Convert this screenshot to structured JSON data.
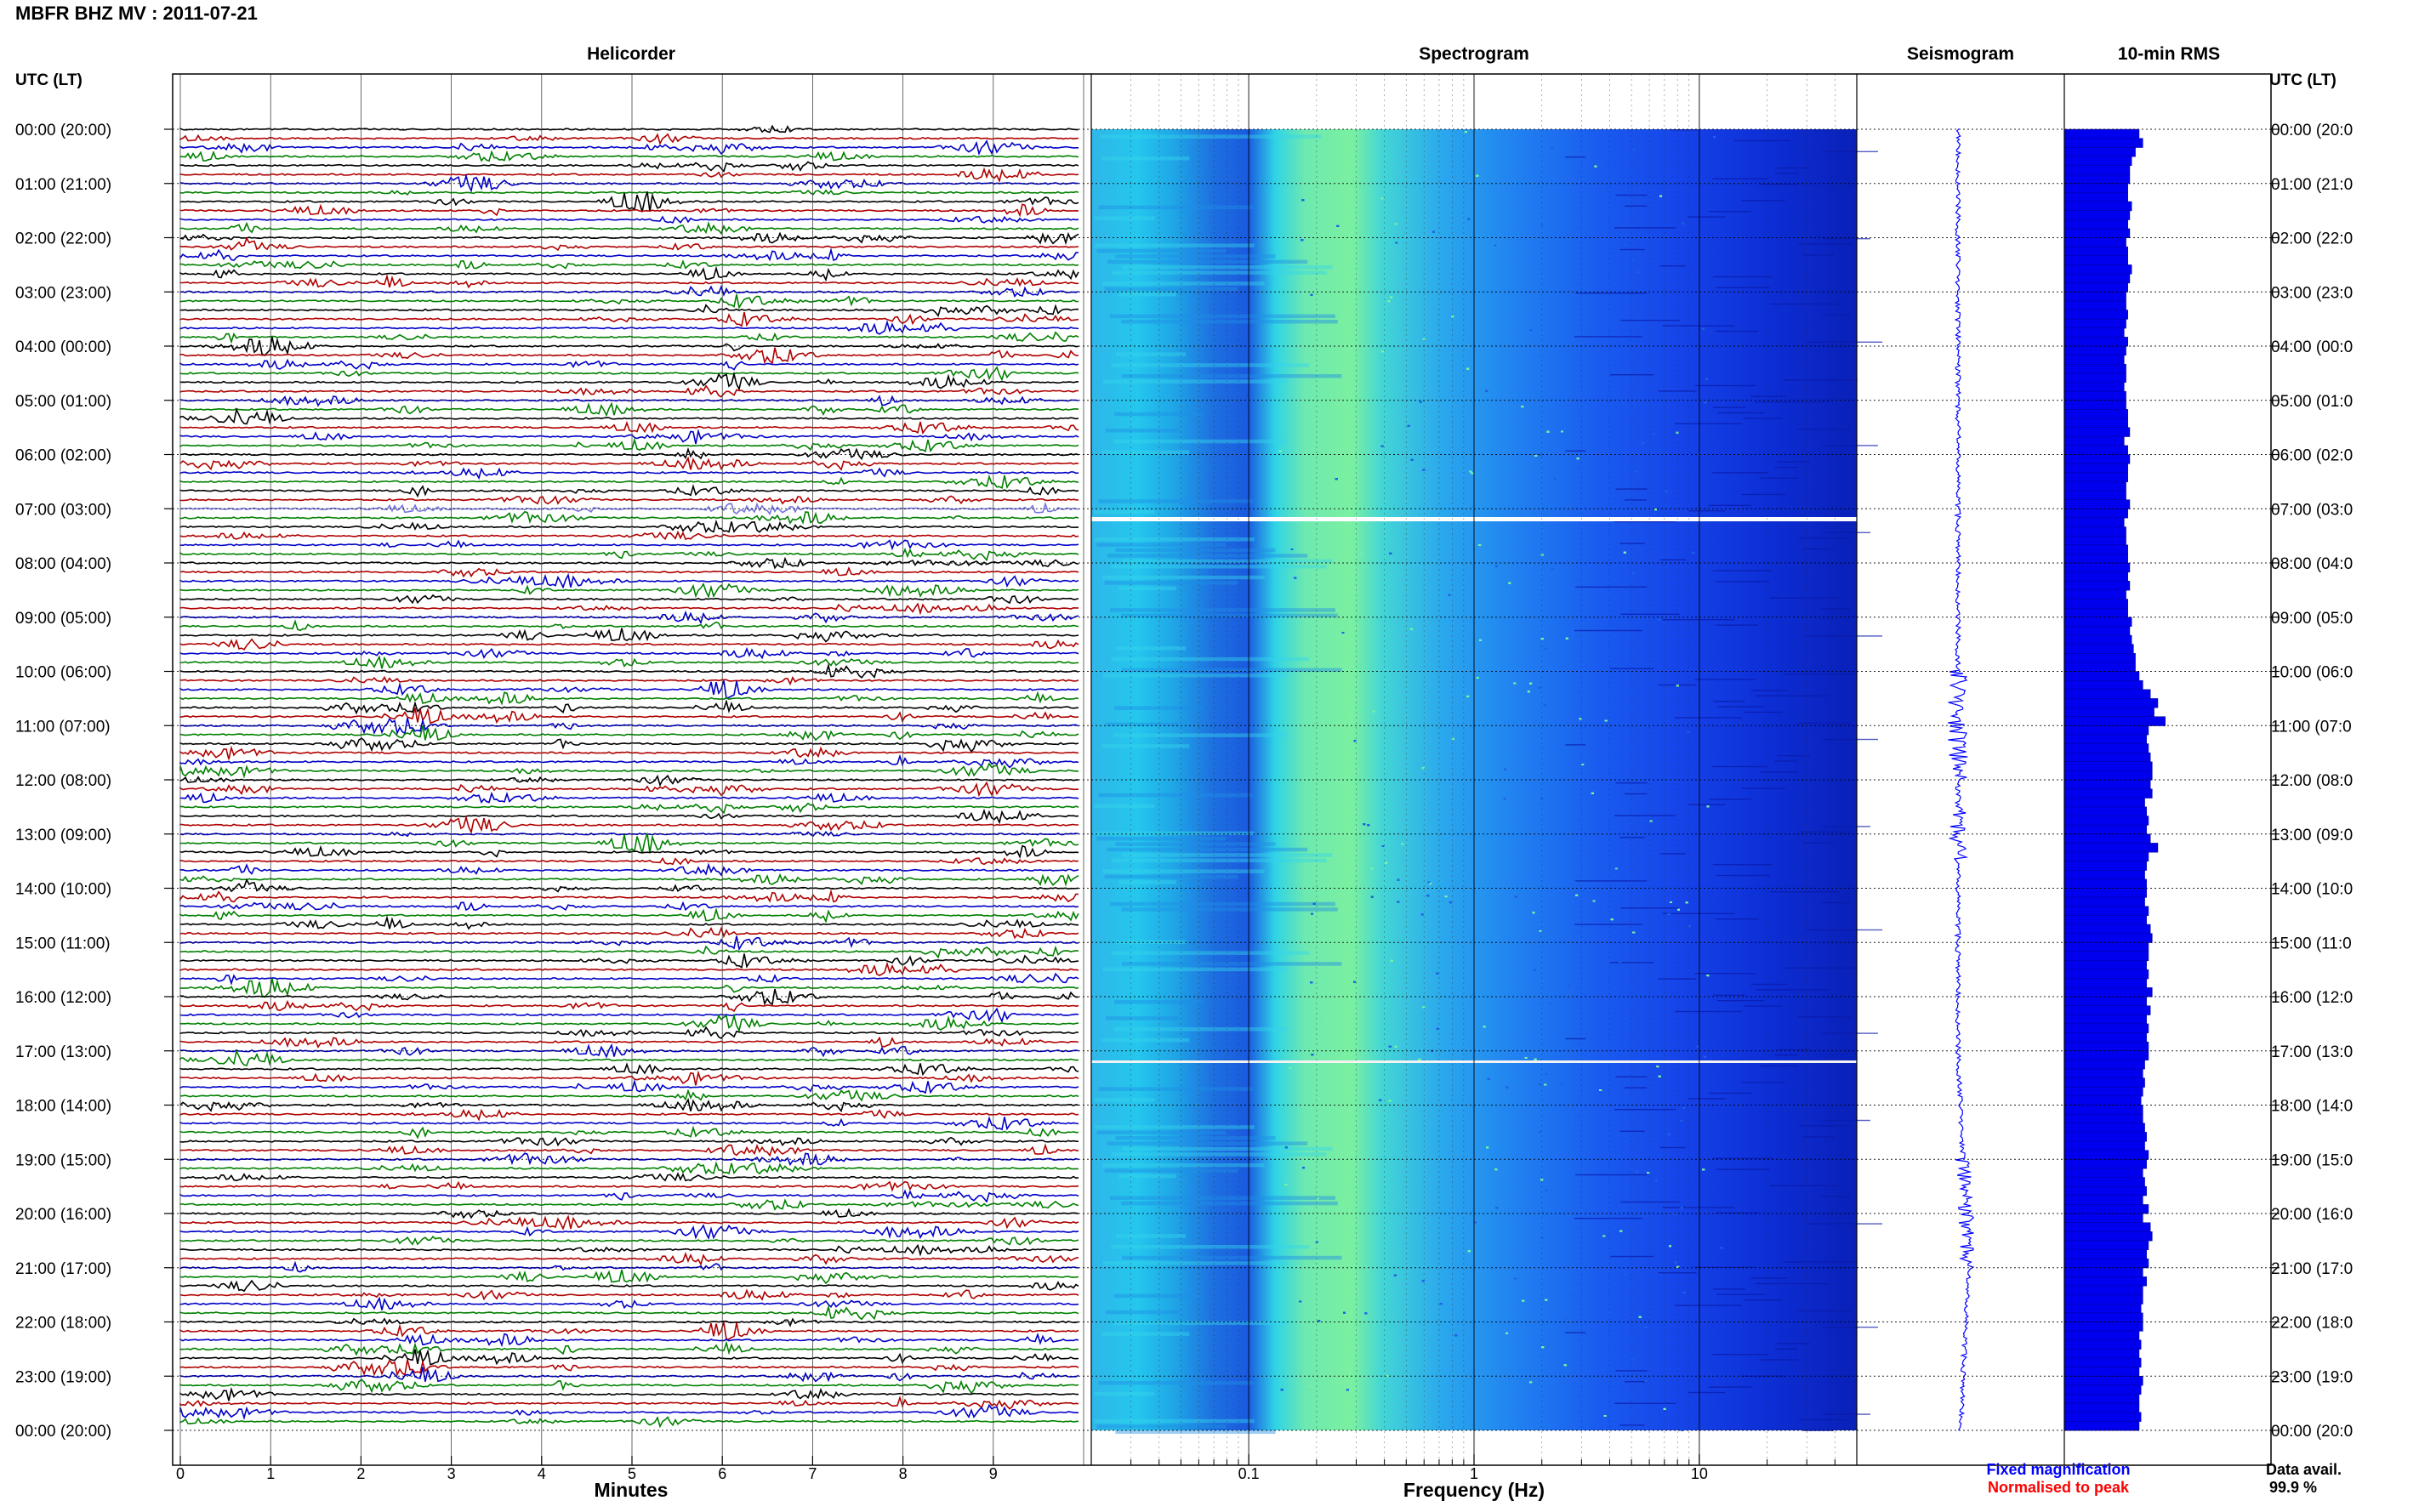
{
  "header": {
    "station_title": "MBFR BHZ MV : 2011-07-21",
    "left_axis_label": "UTC (LT)",
    "right_axis_label": "UTC (LT)"
  },
  "panels": {
    "helicorder_title": "Helicorder",
    "spectrogram_title": "Spectrogram",
    "seismogram_title": "Seismogram",
    "rms_title": "10-min RMS"
  },
  "axes": {
    "minutes_label": "Minutes",
    "frequency_label": "Frequency (Hz)",
    "minute_ticks": [
      "0",
      "1",
      "2",
      "3",
      "4",
      "5",
      "6",
      "7",
      "8",
      "9"
    ],
    "frequency_ticks": [
      "0.1",
      "1",
      "10"
    ]
  },
  "time_labels_left": [
    "00:00 (20:00)",
    "01:00 (21:00)",
    "02:00 (22:00)",
    "03:00 (23:00)",
    "04:00 (00:00)",
    "05:00 (01:00)",
    "06:00 (02:00)",
    "07:00 (03:00)",
    "08:00 (04:00)",
    "09:00 (05:00)",
    "10:00 (06:00)",
    "11:00 (07:00)",
    "12:00 (08:00)",
    "13:00 (09:00)",
    "14:00 (10:00)",
    "15:00 (11:00)",
    "16:00 (12:00)",
    "17:00 (13:00)",
    "18:00 (14:00)",
    "19:00 (15:00)",
    "20:00 (16:00)",
    "21:00 (17:00)",
    "22:00 (18:00)",
    "23:00 (19:00)",
    "00:00 (20:00)"
  ],
  "time_labels_right": [
    "00:00 (20:0",
    "01:00 (21:0",
    "02:00 (22:0",
    "03:00 (23:0",
    "04:00 (00:0",
    "05:00 (01:0",
    "06:00 (02:0",
    "07:00 (03:0",
    "08:00 (04:0",
    "09:00 (05:0",
    "10:00 (06:0",
    "11:00 (07:0",
    "12:00 (08:0",
    "13:00 (09:0",
    "14:00 (10:0",
    "15:00 (11:0",
    "16:00 (12:0",
    "17:00 (13:0",
    "18:00 (14:0",
    "19:00 (15:0",
    "20:00 (16:0",
    "21:00 (17:0",
    "22:00 (18:0",
    "23:00 (19:0",
    "00:00 (20:0"
  ],
  "legend": {
    "fixed_magnification": "Fixed magnification",
    "normalised_to_peak": "Normalised to peak",
    "fixed_color": "#0000ff",
    "normalised_color": "#ff0000"
  },
  "data_availability": {
    "label": "Data avail.",
    "value": "99.9 %"
  },
  "colors": {
    "helicorder_cycle": [
      "#000000",
      "#b00000",
      "#0000c8",
      "#008000"
    ],
    "spectrogram_low": "#00007f",
    "spectrogram_high": "#7fff7f"
  },
  "chart_data": {
    "type": "heatmap",
    "title": "MBFR BHZ MV : 2011-07-21",
    "time_range_utc": [
      "00:00",
      "00:00"
    ],
    "helicorder": {
      "lines_per_hour": 6,
      "minutes_per_line": 10,
      "color_cycle": [
        "black",
        "red",
        "blue",
        "green"
      ],
      "x_range_minutes": [
        0,
        10
      ],
      "gaps": [
        "07:00",
        "17:00"
      ]
    },
    "spectrogram": {
      "x_scale": "log",
      "x_range_hz": [
        0.02,
        50
      ],
      "peak_band_hz": [
        0.15,
        0.5
      ]
    },
    "rms_10min_relative": [
      0.4,
      0.42,
      0.38,
      0.36,
      0.35,
      0.35,
      0.34,
      0.34,
      0.36,
      0.35,
      0.34,
      0.35,
      0.33,
      0.34,
      0.34,
      0.36,
      0.35,
      0.34,
      0.33,
      0.33,
      0.34,
      0.33,
      0.32,
      0.34,
      0.33,
      0.32,
      0.33,
      0.33,
      0.32,
      0.33,
      0.33,
      0.34,
      0.34,
      0.35,
      0.32,
      0.34,
      0.35,
      0.34,
      0.34,
      0.33,
      0.33,
      0.35,
      0.34,
      0.32,
      0.33,
      0.33,
      0.34,
      0.34,
      0.35,
      0.34,
      0.35,
      0.33,
      0.34,
      0.34,
      0.36,
      0.35,
      0.36,
      0.37,
      0.38,
      0.38,
      0.4,
      0.42,
      0.46,
      0.5,
      0.48,
      0.54,
      0.45,
      0.44,
      0.45,
      0.46,
      0.47,
      0.47,
      0.46,
      0.47,
      0.43,
      0.44,
      0.45,
      0.44,
      0.46,
      0.5,
      0.45,
      0.44,
      0.43,
      0.44,
      0.44,
      0.43,
      0.45,
      0.44,
      0.46,
      0.47,
      0.45,
      0.45,
      0.44,
      0.45,
      0.44,
      0.47,
      0.44,
      0.46,
      0.44,
      0.45,
      0.44,
      0.45,
      0.45,
      0.43,
      0.42,
      0.43,
      0.42,
      0.41,
      0.42,
      0.42,
      0.43,
      0.44,
      0.43,
      0.45,
      0.44,
      0.42,
      0.43,
      0.44,
      0.42,
      0.45,
      0.42,
      0.46,
      0.47,
      0.45,
      0.44,
      0.45,
      0.42,
      0.44,
      0.42,
      0.42,
      0.41,
      0.42,
      0.42,
      0.4,
      0.41,
      0.4,
      0.41,
      0.4,
      0.42,
      0.41,
      0.4,
      0.4,
      0.41,
      0.4
    ],
    "legend": [
      "Fixed magnification",
      "Normalised to peak"
    ],
    "data_availability_percent": 99.9
  }
}
